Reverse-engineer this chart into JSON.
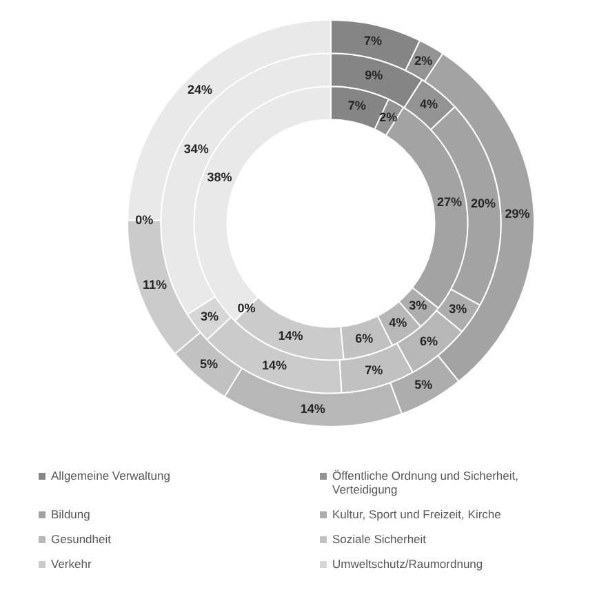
{
  "chart_data": {
    "type": "donut",
    "categories": [
      "Allgemeine Verwaltung",
      "Öffentliche Ordnung und Sicherheit, Verteidigung",
      "Bildung",
      "Kultur, Sport und Freizeit, Kirche",
      "Gesundheit",
      "Soziale Sicherheit",
      "Verkehr",
      "Umweltschutz/Raumordnung",
      null
    ],
    "colors": [
      "#858585",
      "#939393",
      "#a3a3a3",
      "#adadad",
      "#b7b7b7",
      "#c1c1c1",
      "#cbcbcb",
      "#d6d6d6",
      "#e9e9e9"
    ],
    "series": [
      {
        "values": [
          7,
          2,
          29,
          5,
          14,
          5,
          11,
          0,
          24
        ],
        "value_labels": [
          "7%",
          "2%",
          "29%",
          "5%",
          "14%",
          "5%",
          "11%",
          "0%",
          "24%"
        ]
      },
      {
        "values": [
          9,
          4,
          20,
          3,
          6,
          7,
          14,
          3,
          34
        ],
        "value_labels": [
          "9%",
          "4%",
          "20%",
          "3%",
          "6%",
          "7%",
          "14%",
          "3%",
          "34%"
        ]
      },
      {
        "values": [
          7,
          2,
          27,
          3,
          4,
          6,
          14,
          0,
          38
        ],
        "value_labels": [
          "7%",
          "2%",
          "27%",
          "3%",
          "4%",
          "6%",
          "14%",
          "0%",
          "38%"
        ]
      }
    ],
    "legend": "bottom"
  }
}
